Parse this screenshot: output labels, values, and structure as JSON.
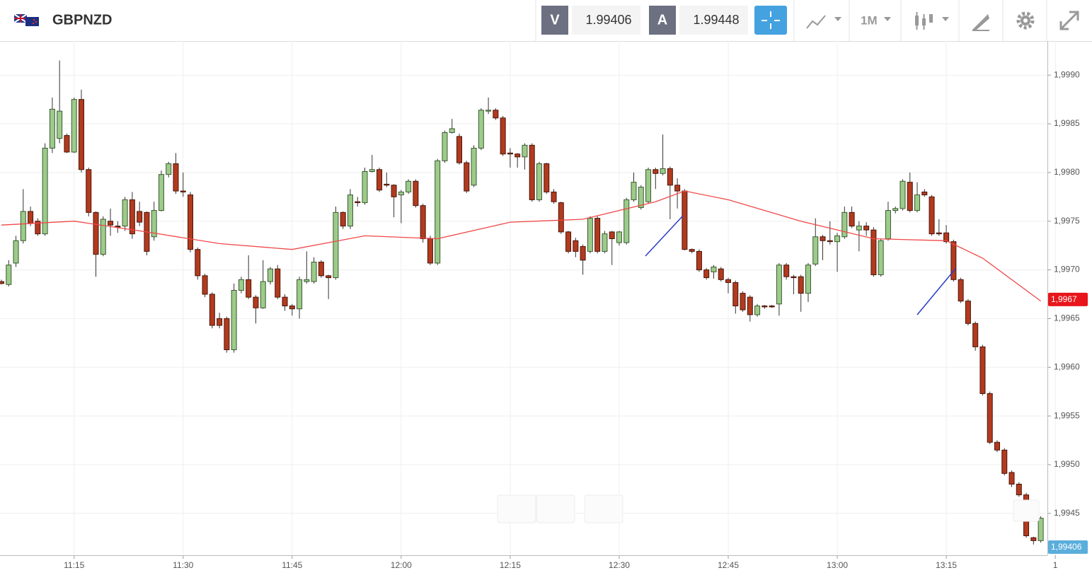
{
  "header": {
    "symbol": "GBPNZD",
    "bid_label": "V",
    "bid": 1.99406,
    "ask_label": "A",
    "ask": 1.99448,
    "timeframe": "1M"
  },
  "chart_data": {
    "type": "candlestick",
    "x": [
      "11:05",
      "11:06",
      "11:07",
      "11:08",
      "11:09",
      "11:10",
      "11:11",
      "11:12",
      "11:13",
      "11:14",
      "11:15",
      "11:16",
      "11:17",
      "11:18",
      "11:19",
      "11:20",
      "11:21",
      "11:22",
      "11:23",
      "11:24",
      "11:25",
      "11:26",
      "11:27",
      "11:28",
      "11:29",
      "11:30",
      "11:31",
      "11:32",
      "11:33",
      "11:34",
      "11:35",
      "11:36",
      "11:37",
      "11:38",
      "11:39",
      "11:40",
      "11:41",
      "11:42",
      "11:43",
      "11:44",
      "11:45",
      "11:46",
      "11:47",
      "11:48",
      "11:49",
      "11:50",
      "11:51",
      "11:52",
      "11:53",
      "11:54",
      "11:55",
      "11:56",
      "11:57",
      "11:58",
      "11:59",
      "12:00",
      "12:01",
      "12:02",
      "12:03",
      "12:04",
      "12:05",
      "12:06",
      "12:07",
      "12:08",
      "12:09",
      "12:10",
      "12:11",
      "12:12",
      "12:13",
      "12:14",
      "12:15",
      "12:16",
      "12:17",
      "12:18",
      "12:19",
      "12:20",
      "12:21",
      "12:22",
      "12:23",
      "12:24",
      "12:25",
      "12:26",
      "12:27",
      "12:28",
      "12:29",
      "12:30",
      "12:31",
      "12:32",
      "12:33",
      "12:34",
      "12:35",
      "12:36",
      "12:37",
      "12:38",
      "12:39",
      "12:40",
      "12:41",
      "12:42",
      "12:43",
      "12:44",
      "12:45",
      "12:46",
      "12:47",
      "12:48",
      "12:49",
      "12:50",
      "12:51",
      "12:52",
      "12:53",
      "12:54",
      "12:55",
      "12:56",
      "12:57",
      "12:58",
      "12:59",
      "13:00",
      "13:01",
      "13:02",
      "13:03",
      "13:04",
      "13:05",
      "13:06",
      "13:07",
      "13:08",
      "13:09",
      "13:10",
      "13:11",
      "13:12",
      "13:13",
      "13:14",
      "13:15",
      "13:16",
      "13:17",
      "13:18",
      "13:19",
      "13:20",
      "13:21",
      "13:22",
      "13:23",
      "13:24",
      "13:25",
      "13:26",
      "13:27",
      "13:28"
    ],
    "open": [
      1.99688,
      1.99685,
      1.99707,
      1.9973,
      1.9976,
      1.9975,
      1.99737,
      1.99825,
      1.99835,
      1.99838,
      1.99821,
      1.99875,
      1.99803,
      1.99759,
      1.99716,
      1.9975,
      1.99745,
      1.99745,
      1.99772,
      1.9976,
      1.99759,
      1.99734,
      1.99761,
      1.99798,
      1.99809,
      1.99781,
      1.99777,
      1.99721,
      1.99694,
      1.99675,
      1.9965,
      1.9965,
      1.99618,
      1.99679,
      1.9969,
      1.99672,
      1.99661,
      1.99688,
      1.99701,
      1.99672,
      1.99663,
      1.9966,
      1.99688,
      1.99688,
      1.99708,
      1.99694,
      1.99692,
      1.99759,
      1.99745,
      1.9977,
      1.99769,
      1.99801,
      1.99803,
      1.99788,
      1.99787,
      1.99777,
      1.9978,
      1.99791,
      1.99766,
      1.99732,
      1.99707,
      1.99812,
      1.99841,
      1.99837,
      1.9981,
      1.99787,
      1.99825,
      1.99863,
      1.99864,
      1.99856,
      1.9982,
      1.99819,
      1.99816,
      1.99828,
      1.99772,
      1.99809,
      1.9978,
      1.99769,
      1.99739,
      1.9973,
      1.99724,
      1.99719,
      1.99753,
      1.99719,
      1.99739,
      1.99728,
      1.99728,
      1.99772,
      1.99764,
      1.9977,
      1.99803,
      1.99799,
      1.99804,
      1.99787,
      1.99781,
      1.99721,
      1.99719,
      1.997,
      1.99698,
      1.99701,
      1.9969,
      1.99687,
      1.99676,
      1.99672,
      1.99654,
      1.99663,
      1.99663,
      1.99665,
      1.99705,
      1.99693,
      1.99693,
      1.99676,
      1.99706,
      1.99734,
      1.9973,
      1.99729,
      1.99734,
      1.99759,
      1.99741,
      1.99745,
      1.99741,
      1.99695,
      1.99732,
      1.99761,
      1.99763,
      1.9979,
      1.99761,
      1.9978,
      1.99775,
      1.99738,
      1.99738,
      1.99729,
      1.9969,
      1.99668,
      1.99645,
      1.99621,
      1.99573,
      1.99523,
      1.99515,
      1.99492,
      1.9948,
      1.99469,
      1.99425,
      1.99422
    ],
    "high": [
      1.9969,
      1.9971,
      1.99735,
      1.99783,
      1.99765,
      1.99753,
      1.9983,
      1.99877,
      1.99915,
      1.9984,
      1.99877,
      1.99885,
      1.99805,
      1.9976,
      1.99755,
      1.99763,
      1.9975,
      1.99775,
      1.9978,
      1.9977,
      1.9976,
      1.9977,
      1.99802,
      1.99811,
      1.9982,
      1.998,
      1.9978,
      1.99723,
      1.99696,
      1.99677,
      1.99656,
      1.99652,
      1.99686,
      1.99693,
      1.99715,
      1.99674,
      1.9971,
      1.99703,
      1.99705,
      1.99675,
      1.99665,
      1.99693,
      1.99719,
      1.99713,
      1.9971,
      1.99695,
      1.99765,
      1.9976,
      1.99783,
      1.99775,
      1.99805,
      1.99818,
      1.99805,
      1.998,
      1.99788,
      1.99782,
      1.99793,
      1.99793,
      1.99768,
      1.99735,
      1.99814,
      1.99843,
      1.99855,
      1.9984,
      1.99812,
      1.99828,
      1.99866,
      1.99877,
      1.99866,
      1.99858,
      1.99825,
      1.9982,
      1.9983,
      1.9983,
      1.99811,
      1.9981,
      1.99783,
      1.9977,
      1.9974,
      1.99733,
      1.99726,
      1.99755,
      1.99755,
      1.9974,
      1.9974,
      1.9974,
      1.99774,
      1.998,
      1.99787,
      1.99805,
      1.99805,
      1.99839,
      1.99806,
      1.99794,
      1.99783,
      1.99722,
      1.99721,
      1.99702,
      1.99705,
      1.99703,
      1.99692,
      1.99689,
      1.99678,
      1.99674,
      1.99665,
      1.99664,
      1.99664,
      1.99707,
      1.99707,
      1.99695,
      1.99695,
      1.99707,
      1.99753,
      1.99736,
      1.9975,
      1.99738,
      1.99765,
      1.99765,
      1.9975,
      1.99749,
      1.99744,
      1.99732,
      1.9977,
      1.99765,
      1.99793,
      1.998,
      1.9979,
      1.99783,
      1.99777,
      1.99752,
      1.99746,
      1.99731,
      1.99692,
      1.9967,
      1.99647,
      1.99623,
      1.99575,
      1.99525,
      1.99517,
      1.99494,
      1.99482,
      1.99471,
      1.99426,
      1.99447
    ],
    "low": [
      1.99685,
      1.99683,
      1.99703,
      1.99727,
      1.99745,
      1.99735,
      1.99735,
      1.9982,
      1.9983,
      1.9982,
      1.9982,
      1.998,
      1.99755,
      1.99693,
      1.99714,
      1.99735,
      1.99738,
      1.9974,
      1.99732,
      1.99745,
      1.99715,
      1.9973,
      1.9976,
      1.99795,
      1.99778,
      1.99775,
      1.99718,
      1.9969,
      1.99672,
      1.9964,
      1.9964,
      1.99615,
      1.99615,
      1.99676,
      1.9967,
      1.99645,
      1.9966,
      1.99685,
      1.9967,
      1.99658,
      1.99653,
      1.9965,
      1.99686,
      1.99686,
      1.99692,
      1.9967,
      1.9969,
      1.99742,
      1.99742,
      1.99765,
      1.99767,
      1.998,
      1.9978,
      1.99785,
      1.99754,
      1.99748,
      1.99778,
      1.99764,
      1.99728,
      1.99705,
      1.99705,
      1.9981,
      1.9984,
      1.99808,
      1.99779,
      1.99785,
      1.99823,
      1.9986,
      1.99854,
      1.99817,
      1.99805,
      1.99805,
      1.99803,
      1.9977,
      1.9977,
      1.99778,
      1.99768,
      1.99737,
      1.99717,
      1.99713,
      1.99695,
      1.99717,
      1.99717,
      1.99717,
      1.99705,
      1.99725,
      1.99726,
      1.9977,
      1.99762,
      1.99768,
      1.99783,
      1.99797,
      1.99752,
      1.99763,
      1.9972,
      1.99717,
      1.99698,
      1.9969,
      1.99691,
      1.99688,
      1.99676,
      1.99655,
      1.99657,
      1.99647,
      1.99652,
      1.9966,
      1.99661,
      1.99653,
      1.9969,
      1.99675,
      1.99657,
      1.99667,
      1.99704,
      1.9971,
      1.99726,
      1.99698,
      1.99732,
      1.99743,
      1.99719,
      1.99735,
      1.99693,
      1.99693,
      1.9973,
      1.99758,
      1.99761,
      1.99759,
      1.99759,
      1.99775,
      1.99735,
      1.99735,
      1.99727,
      1.99688,
      1.99666,
      1.99643,
      1.99617,
      1.99571,
      1.99521,
      1.99513,
      1.99489,
      1.99477,
      1.99467,
      1.99425,
      1.99418,
      1.9942
    ],
    "close": [
      1.99686,
      1.99705,
      1.9973,
      1.9976,
      1.99748,
      1.99737,
      1.99825,
      1.99865,
      1.99863,
      1.99821,
      1.99875,
      1.99803,
      1.99759,
      1.99716,
      1.99752,
      1.99746,
      1.99744,
      1.99772,
      1.99737,
      1.99749,
      1.99719,
      1.99761,
      1.99798,
      1.99809,
      1.99781,
      1.9978,
      1.99721,
      1.99694,
      1.99675,
      1.99643,
      1.99643,
      1.99618,
      1.99679,
      1.9969,
      1.99672,
      1.99661,
      1.99688,
      1.99701,
      1.99672,
      1.99663,
      1.9966,
      1.9969,
      1.9969,
      1.99708,
      1.99694,
      1.99692,
      1.99759,
      1.99745,
      1.99777,
      1.99769,
      1.99801,
      1.99803,
      1.99782,
      1.99787,
      1.99775,
      1.9978,
      1.99791,
      1.99766,
      1.99732,
      1.99707,
      1.99812,
      1.99841,
      1.99845,
      1.9981,
      1.99781,
      1.99825,
      1.99864,
      1.99864,
      1.99856,
      1.99819,
      1.99819,
      1.99816,
      1.99828,
      1.99772,
      1.99809,
      1.9978,
      1.9977,
      1.99739,
      1.99719,
      1.99719,
      1.9971,
      1.99753,
      1.99719,
      1.99737,
      1.99732,
      1.99739,
      1.99772,
      1.9979,
      1.99785,
      1.99803,
      1.99799,
      1.99804,
      1.99787,
      1.99781,
      1.99721,
      1.99719,
      1.997,
      1.99692,
      1.99703,
      1.9969,
      1.99687,
      1.99663,
      1.99659,
      1.99654,
      1.99663,
      1.99662,
      1.99662,
      1.99705,
      1.99693,
      1.99692,
      1.99676,
      1.99705,
      1.99734,
      1.9973,
      1.99729,
      1.99735,
      1.99759,
      1.99745,
      1.99745,
      1.99741,
      1.99695,
      1.9973,
      1.99761,
      1.99763,
      1.99791,
      1.99761,
      1.99777,
      1.99777,
      1.99737,
      1.99737,
      1.99729,
      1.9969,
      1.99668,
      1.99645,
      1.99621,
      1.99573,
      1.99523,
      1.99515,
      1.99491,
      1.9948,
      1.99469,
      1.99427,
      1.99422,
      1.99445
    ],
    "up_color": "#9ccb8a",
    "down_color": "#b23a1e",
    "moving_average": {
      "color": "#f04848",
      "x": [
        "11:05",
        "11:15",
        "11:25",
        "11:35",
        "11:45",
        "11:55",
        "12:05",
        "12:15",
        "12:25",
        "12:35",
        "12:39",
        "12:45",
        "12:55",
        "13:05",
        "13:15",
        "13:20",
        "13:28"
      ],
      "values": [
        1.99746,
        1.9975,
        1.99739,
        1.99727,
        1.99721,
        1.99735,
        1.99732,
        1.99749,
        1.99752,
        1.9977,
        1.99781,
        1.99772,
        1.9975,
        1.99732,
        1.9973,
        1.99712,
        1.99668
      ]
    },
    "ylim": [
      1.99407,
      1.99935
    ],
    "yticks": [
      {
        "value": 1.9945,
        "label": "1,9945"
      },
      {
        "value": 1.995,
        "label": "1,9950"
      },
      {
        "value": 1.9955,
        "label": "1,9955"
      },
      {
        "value": 1.996,
        "label": "1,9960"
      },
      {
        "value": 1.9965,
        "label": "1,9965"
      },
      {
        "value": 1.997,
        "label": "1,9970"
      },
      {
        "value": 1.9975,
        "label": "1,9975"
      },
      {
        "value": 1.998,
        "label": "1,9980"
      },
      {
        "value": 1.9985,
        "label": "1,9985"
      },
      {
        "value": 1.999,
        "label": "1,9990"
      }
    ],
    "xticks": [
      "11:15",
      "11:30",
      "11:45",
      "12:00",
      "12:15",
      "12:30",
      "12:45",
      "13:00",
      "13:15",
      "1"
    ],
    "grid": true,
    "price_markers": [
      {
        "value": 1.9967,
        "label": "1,9967",
        "color": "#e8151b"
      },
      {
        "value": 1.99406,
        "label": "1,99406",
        "color": "#5aaedc"
      }
    ]
  }
}
